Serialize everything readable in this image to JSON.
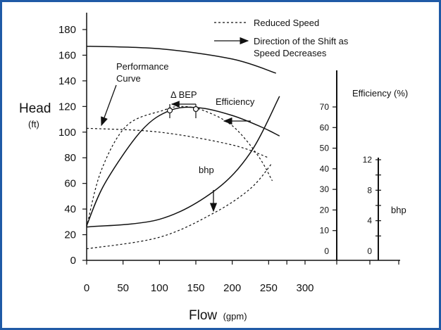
{
  "chart_data": {
    "type": "line",
    "ylabel": "Head",
    "ylabel_unit": "(ft)",
    "xlabel": "Flow",
    "xlabel_unit": "(gpm)",
    "xlim": [
      0,
      300
    ],
    "ylim": [
      0,
      180
    ],
    "x_ticks": [
      "0",
      "50",
      "100",
      "150",
      "200",
      "250",
      "300"
    ],
    "y_ticks": [
      "0",
      "20",
      "40",
      "60",
      "80",
      "100",
      "120",
      "140",
      "160",
      "180"
    ],
    "legend": {
      "dashed": "Reduced Speed",
      "arrow_line1": "Direction of the Shift as",
      "arrow_line2": "Speed Decreases"
    },
    "annotations": {
      "performance_curve_line1": "Performance",
      "performance_curve_line2": "Curve",
      "bep": "Δ BEP",
      "efficiency": "Efficiency",
      "bhp": "bhp"
    },
    "efficiency_axis": {
      "label": "Efficiency (%)",
      "ticks": [
        "0",
        "10",
        "20",
        "30",
        "40",
        "50",
        "60",
        "70"
      ],
      "range": [
        0,
        70
      ]
    },
    "bhp_axis": {
      "label": "bhp",
      "ticks": [
        "0",
        "4",
        "8",
        "12"
      ],
      "range": [
        0,
        12
      ]
    },
    "series": [
      {
        "name": "Performance Curve",
        "style": "solid",
        "points": [
          [
            0,
            167
          ],
          [
            100,
            165
          ],
          [
            200,
            157
          ],
          [
            260,
            146
          ]
        ]
      },
      {
        "name": "Performance Curve",
        "style": "dashed",
        "points": [
          [
            0,
            103
          ],
          [
            100,
            100
          ],
          [
            200,
            90
          ],
          [
            250,
            80
          ]
        ]
      },
      {
        "name": "Efficiency",
        "style": "solid",
        "points": [
          [
            0,
            27
          ],
          [
            25,
            60
          ],
          [
            75,
            101
          ],
          [
            115,
            117
          ],
          [
            155,
            119
          ],
          [
            200,
            113
          ],
          [
            240,
            104
          ],
          [
            265,
            97
          ]
        ]
      },
      {
        "name": "Efficiency",
        "style": "dashed",
        "points": [
          [
            0,
            26
          ],
          [
            20,
            70
          ],
          [
            55,
            105
          ],
          [
            105,
            117
          ],
          [
            130,
            120
          ],
          [
            160,
            117
          ],
          [
            200,
            105
          ],
          [
            235,
            82
          ],
          [
            255,
            62
          ]
        ]
      },
      {
        "name": "bhp",
        "style": "solid",
        "points": [
          [
            0,
            26
          ],
          [
            100,
            32
          ],
          [
            175,
            54
          ],
          [
            225,
            84
          ],
          [
            265,
            128
          ]
        ]
      },
      {
        "name": "bhp",
        "style": "dashed",
        "points": [
          [
            0,
            9
          ],
          [
            100,
            18
          ],
          [
            175,
            37
          ],
          [
            225,
            56
          ],
          [
            255,
            76
          ]
        ]
      }
    ]
  }
}
